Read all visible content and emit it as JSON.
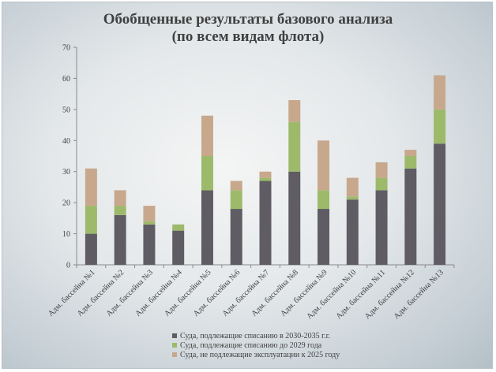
{
  "chart_data": {
    "type": "bar",
    "stacked": true,
    "title_line1": "Обобщенные результаты базового анализа",
    "title_line2": "(по всем видам флота)",
    "categories": [
      "Адм. бассейна №1",
      "Адм. бассейна №2",
      "Адм. бассейна №3",
      "Адм. бассейна №4",
      "Адм. бассейна №5",
      "Адм. бассейна №6",
      "Адм. бассейна №7",
      "Адм. бассейна №8",
      "Адм. бассейна №9",
      "Адм. бассейна №10",
      "Адм. бассейна №11",
      "Адм. бассейна №12",
      "Адм. бассейна №13"
    ],
    "series": [
      {
        "name": "Суда, подлежащие списанию в 2030-2035 г.г.",
        "color": "#5f5d63",
        "values": [
          10,
          16,
          13,
          11,
          24,
          18,
          27,
          30,
          18,
          21,
          24,
          31,
          39
        ]
      },
      {
        "name": "Суда, подлежащие списанию до 2029 года",
        "color": "#9dba6b",
        "values": [
          9,
          3,
          1,
          2,
          11,
          6,
          1,
          16,
          6,
          1,
          4,
          4,
          11
        ]
      },
      {
        "name": "Суда, не подлежащие эксплуатации к 2025 году",
        "color": "#c8a88c",
        "values": [
          12,
          5,
          5,
          0,
          13,
          3,
          2,
          7,
          16,
          6,
          5,
          2,
          11
        ]
      }
    ],
    "ylim": [
      0,
      70
    ],
    "yticks": [
      0,
      10,
      20,
      30,
      40,
      50,
      60,
      70
    ],
    "grid": false,
    "legend_position": "bottom"
  }
}
